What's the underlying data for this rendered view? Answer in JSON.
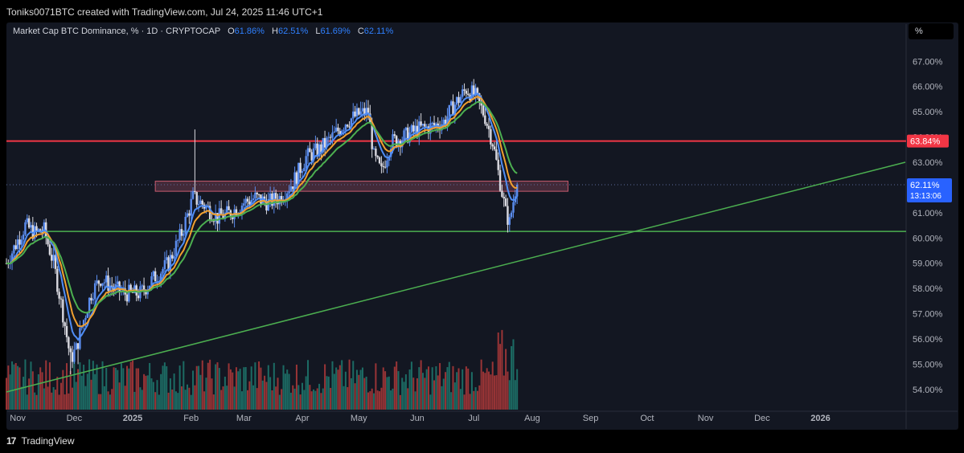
{
  "header": {
    "attribution": "Toniks0071BTC created with TradingView.com, Jul 24, 2025 11:46 UTC+1"
  },
  "legend": {
    "symbol": "Market Cap BTC Dominance, %",
    "interval": "1D",
    "source": "CRYPTOCAP",
    "open_label": "O",
    "open": "61.86%",
    "high_label": "H",
    "high": "62.51%",
    "low_label": "L",
    "low": "61.69%",
    "close_label": "C",
    "close": "62.11%"
  },
  "toolbar": {
    "scale_button": "%"
  },
  "footer": {
    "brand": "TradingView",
    "logo": "17"
  },
  "colors": {
    "background": "#131722",
    "up": "#5b8def",
    "down": "#d9d9e0",
    "resistance": "#f23645",
    "support": "#4caf50",
    "ema_fast": "#4f8df5",
    "ema_mid": "#f0a030",
    "ema_slow": "#4caf50",
    "vol_up": "#1e7a70",
    "vol_down": "#b23a3a",
    "zone": "#6b3a4c",
    "price_tag": "#2962ff"
  },
  "chart_data": {
    "type": "candlestick",
    "title": "Market Cap BTC Dominance, % · 1D · CRYPTOCAP",
    "y_unit": "%",
    "ylim": [
      53.2,
      67.9
    ],
    "y_ticks": [
      "54.00%",
      "55.00%",
      "56.00%",
      "57.00%",
      "58.00%",
      "59.00%",
      "60.00%",
      "61.00%",
      "62.00%",
      "63.00%",
      "64.00%",
      "65.00%",
      "66.00%",
      "67.00%"
    ],
    "x_ticks": [
      "Nov",
      "Dec",
      "2025",
      "Feb",
      "Mar",
      "Apr",
      "May",
      "Jun",
      "Jul",
      "Aug",
      "Sep",
      "Oct",
      "Nov",
      "Dec",
      "2026"
    ],
    "x_range": [
      "2024-10-26",
      "2026-02-15"
    ],
    "price_path": [
      [
        "2024-10-26",
        59.0
      ],
      [
        "2024-11-05",
        60.5
      ],
      [
        "2024-11-10",
        60.2
      ],
      [
        "2024-11-15",
        60.3
      ],
      [
        "2024-11-20",
        59.0
      ],
      [
        "2024-11-25",
        57.0
      ],
      [
        "2024-11-29",
        55.2
      ],
      [
        "2024-12-02",
        55.6
      ],
      [
        "2024-12-05",
        56.5
      ],
      [
        "2024-12-10",
        57.8
      ],
      [
        "2024-12-15",
        58.4
      ],
      [
        "2024-12-22",
        58.0
      ],
      [
        "2024-12-28",
        57.8
      ],
      [
        "2025-01-05",
        57.8
      ],
      [
        "2025-01-12",
        58.4
      ],
      [
        "2025-01-20",
        59.0
      ],
      [
        "2025-01-27",
        60.2
      ],
      [
        "2025-02-02",
        61.6
      ],
      [
        "2025-02-08",
        61.3
      ],
      [
        "2025-02-15",
        60.8
      ],
      [
        "2025-02-22",
        61.0
      ],
      [
        "2025-03-01",
        61.4
      ],
      [
        "2025-03-07",
        61.6
      ],
      [
        "2025-03-14",
        61.4
      ],
      [
        "2025-03-20",
        61.6
      ],
      [
        "2025-03-27",
        62.2
      ],
      [
        "2025-04-03",
        63.2
      ],
      [
        "2025-04-10",
        63.5
      ],
      [
        "2025-04-17",
        64.0
      ],
      [
        "2025-04-24",
        64.6
      ],
      [
        "2025-05-01",
        64.9
      ],
      [
        "2025-05-06",
        65.0
      ],
      [
        "2025-05-09",
        63.2
      ],
      [
        "2025-05-13",
        62.6
      ],
      [
        "2025-05-18",
        63.8
      ],
      [
        "2025-05-25",
        64.0
      ],
      [
        "2025-06-01",
        64.3
      ],
      [
        "2025-06-08",
        64.4
      ],
      [
        "2025-06-15",
        64.6
      ],
      [
        "2025-06-20",
        65.2
      ],
      [
        "2025-06-27",
        65.9
      ],
      [
        "2025-07-02",
        65.6
      ],
      [
        "2025-07-07",
        64.8
      ],
      [
        "2025-07-11",
        63.8
      ],
      [
        "2025-07-15",
        62.2
      ],
      [
        "2025-07-18",
        61.0
      ],
      [
        "2025-07-20",
        60.6
      ],
      [
        "2025-07-23",
        61.9
      ],
      [
        "2025-07-24",
        62.11
      ]
    ],
    "extremes": {
      "spikes": [
        [
          "2025-02-03",
          64.3
        ],
        [
          "2025-06-25",
          66.05
        ],
        [
          "2025-05-02",
          65.4
        ]
      ],
      "lows": [
        [
          "2024-11-29",
          54.6
        ],
        [
          "2024-12-03",
          55.0
        ],
        [
          "2025-07-20",
          60.45
        ]
      ]
    },
    "resistance_level": 63.84,
    "resistance_label": "63.84%",
    "support_level": 60.26,
    "trendline": {
      "from": [
        "2024-10-26",
        53.9
      ],
      "to": [
        "2026-02-15",
        63.0
      ]
    },
    "zone": {
      "from": "2025-01-13",
      "to": "2025-08-20",
      "low": 61.85,
      "high": 62.25
    },
    "last_price": "62.11%",
    "last_value": 62.11,
    "countdown": "13:13:06",
    "ema_series": [
      "EMA fast",
      "EMA mid",
      "EMA slow"
    ]
  }
}
